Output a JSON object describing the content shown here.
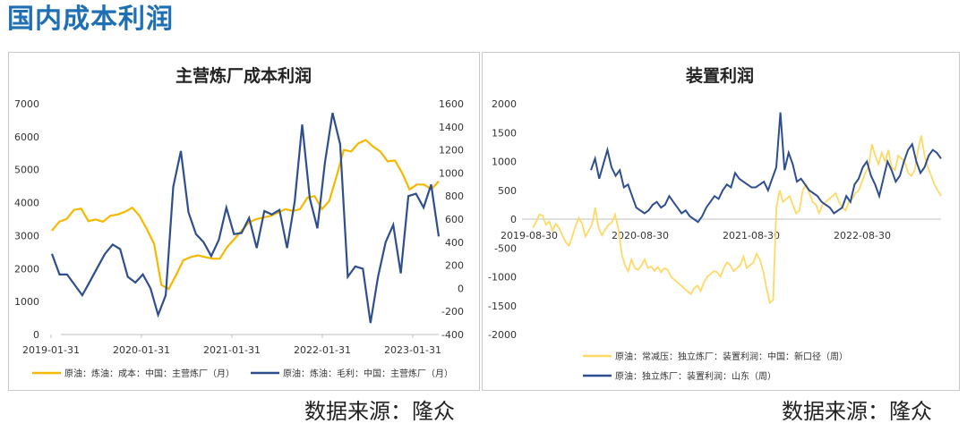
{
  "page": {
    "title": "国内成本利润",
    "source_left": "数据来源：隆众",
    "source_right": "数据来源：隆众"
  },
  "chart_data": [
    {
      "type": "line",
      "title": "主营炼厂成本利润",
      "x_tick_labels": [
        "2019-01-31",
        "2020-01-31",
        "2021-01-31",
        "2022-01-31",
        "2023-01-31"
      ],
      "y_left_ticks": [
        "0",
        "1000",
        "2000",
        "3000",
        "4000",
        "5000",
        "6000",
        "7000"
      ],
      "y_right_ticks": [
        "-400",
        "-200",
        "0",
        "200",
        "400",
        "600",
        "800",
        "1000",
        "1200",
        "1400",
        "1600"
      ],
      "ylim_left": [
        0,
        7000
      ],
      "ylim_right": [
        -400,
        1600
      ],
      "x_start": "2019-01-31",
      "grid": false,
      "legend_position": "bottom",
      "series": [
        {
          "name": "原油：炼油：成本：中国：主营炼厂（月）",
          "axis": "left",
          "color": "#f5b800",
          "values": [
            3150,
            3420,
            3500,
            3780,
            3820,
            3440,
            3490,
            3420,
            3600,
            3640,
            3720,
            3850,
            3600,
            3200,
            2750,
            1500,
            1380,
            1800,
            2250,
            2350,
            2400,
            2350,
            2300,
            2300,
            2650,
            2900,
            3150,
            3400,
            3500,
            3550,
            3600,
            3700,
            3800,
            3750,
            3800,
            4150,
            4200,
            3800,
            4050,
            4800,
            5600,
            5550,
            5800,
            5900,
            5700,
            5550,
            5250,
            5280,
            4900,
            4400,
            4550,
            4550,
            4400,
            4650
          ]
        },
        {
          "name": "原油：炼油：毛利：中国：主营炼厂（月）",
          "axis": "right",
          "color": "#2e4e8e",
          "values": [
            300,
            120,
            120,
            30,
            -60,
            60,
            180,
            300,
            380,
            340,
            100,
            50,
            120,
            0,
            -230,
            -60,
            880,
            1190,
            660,
            470,
            400,
            280,
            420,
            700,
            470,
            480,
            610,
            350,
            670,
            640,
            680,
            350,
            750,
            1420,
            780,
            520,
            1090,
            1520,
            1250,
            100,
            190,
            170,
            -300,
            100,
            400,
            550,
            130,
            800,
            820,
            700,
            900,
            450
          ]
        }
      ]
    },
    {
      "type": "line",
      "title": "装置利润",
      "x_tick_labels": [
        "2019-08-30",
        "2020-08-30",
        "2021-08-30",
        "2022-08-30"
      ],
      "y_ticks": [
        "-2000",
        "-1500",
        "-1000",
        "-500",
        "0",
        "500",
        "1000",
        "1500",
        "2000"
      ],
      "ylim": [
        -2000,
        2000
      ],
      "x_start": "2019-08-30",
      "grid": false,
      "legend_position": "bottom",
      "series": [
        {
          "name": "原油：常减压：独立炼厂：装置利润：中国：新口径（周）",
          "color": "#ffd966",
          "values": [
            -150,
            -50,
            80,
            60,
            -100,
            -40,
            -200,
            -80,
            -150,
            -280,
            -400,
            -460,
            -300,
            -120,
            20,
            -80,
            -300,
            -200,
            -90,
            200,
            -150,
            -280,
            -180,
            -100,
            -60,
            80,
            -160,
            -600,
            -800,
            -900,
            -700,
            -850,
            -880,
            -800,
            -700,
            -850,
            -820,
            -900,
            -830,
            -920,
            -850,
            -880,
            -1000,
            -1050,
            -1100,
            -1150,
            -1200,
            -1250,
            -1300,
            -1200,
            -1150,
            -1250,
            -1100,
            -1000,
            -950,
            -900,
            -920,
            -1000,
            -850,
            -750,
            -800,
            -900,
            -850,
            -800,
            -650,
            -850,
            -800,
            -750,
            -600,
            -700,
            -900,
            -1200,
            -1450,
            -1400,
            200,
            500,
            300,
            350,
            400,
            250,
            100,
            150,
            500,
            600,
            450,
            300,
            250,
            100,
            250,
            300,
            350,
            400,
            450,
            300,
            200,
            150,
            300,
            350,
            450,
            500,
            650,
            800,
            900,
            1300,
            1100,
            950,
            1150,
            1000,
            1200,
            900,
            850,
            1100,
            1050,
            1000,
            800,
            750,
            850,
            1200,
            1450,
            1100,
            900,
            750,
            600,
            500,
            400
          ]
        },
        {
          "name": "原油：独立炼厂：装置利润：山东（周）",
          "color": "#2e4e8e",
          "values": [
            850,
            1050,
            700,
            950,
            1200,
            900,
            750,
            850,
            550,
            600,
            400,
            200,
            150,
            100,
            150,
            250,
            300,
            200,
            250,
            400,
            300,
            200,
            100,
            150,
            50,
            0,
            -50,
            50,
            200,
            300,
            400,
            350,
            500,
            600,
            550,
            800,
            700,
            650,
            600,
            550,
            550,
            600,
            650,
            500,
            700,
            900,
            1850,
            850,
            1150,
            950,
            650,
            700,
            600,
            500,
            450,
            400,
            300,
            250,
            200,
            100,
            150,
            200,
            400,
            300,
            600,
            700,
            900,
            1000,
            750,
            600,
            400,
            700,
            1000,
            850,
            650,
            750,
            1000,
            1200,
            1300,
            1000,
            800,
            900,
            1100,
            1200,
            1150,
            1050
          ]
        }
      ]
    }
  ]
}
